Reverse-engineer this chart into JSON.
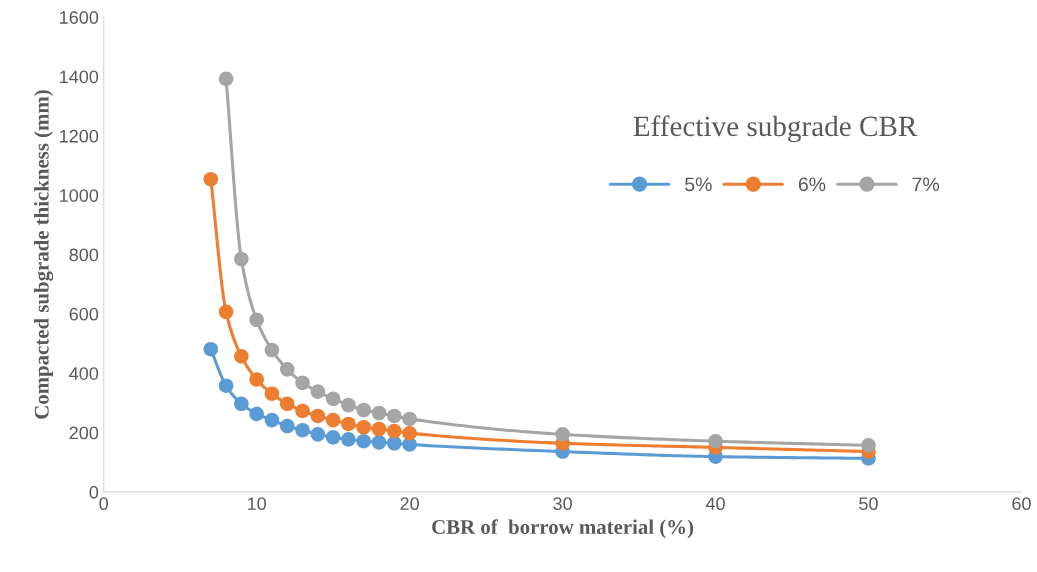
{
  "chart_data": {
    "type": "line",
    "xlabel": "CBR of  borrow material (%)",
    "ylabel": "Compacted subgrade thickness (mm)",
    "legend_title": "Effective subgrade CBR",
    "legend": "top right",
    "marker": "circle",
    "line_style": "solid",
    "grid": false,
    "xlim": [
      0,
      60
    ],
    "xticks": [
      0,
      10,
      20,
      30,
      40,
      50,
      60
    ],
    "ylim": [
      0,
      1600
    ],
    "yticks": [
      0,
      200,
      400,
      600,
      800,
      1000,
      1200,
      1400,
      1600
    ],
    "series": [
      {
        "name": "5%",
        "color": "#5b9bd5",
        "x": [
          7,
          8,
          9,
          10,
          11,
          12,
          13,
          14,
          15,
          16,
          17,
          18,
          19,
          20,
          30,
          40,
          50
        ],
        "values": [
          481,
          358,
          297,
          263,
          242,
          222,
          208,
          194,
          184,
          177,
          171,
          167,
          164,
          160,
          136,
          119,
          113
        ]
      },
      {
        "name": "6%",
        "color": "#ed7d31",
        "x": [
          7,
          8,
          9,
          10,
          11,
          12,
          13,
          14,
          15,
          16,
          17,
          18,
          19,
          20,
          30,
          40,
          50
        ],
        "values": [
          1054,
          607,
          457,
          379,
          331,
          297,
          273,
          256,
          242,
          229,
          218,
          212,
          205,
          198,
          164,
          150,
          136
        ]
      },
      {
        "name": "7%",
        "color": "#a5a5a5",
        "x": [
          8,
          9,
          10,
          11,
          12,
          13,
          14,
          15,
          16,
          17,
          18,
          19,
          20,
          30,
          40,
          50
        ],
        "values": [
          1392,
          785,
          580,
          478,
          413,
          368,
          338,
          314,
          293,
          276,
          266,
          256,
          246,
          194,
          171,
          157
        ]
      }
    ]
  }
}
